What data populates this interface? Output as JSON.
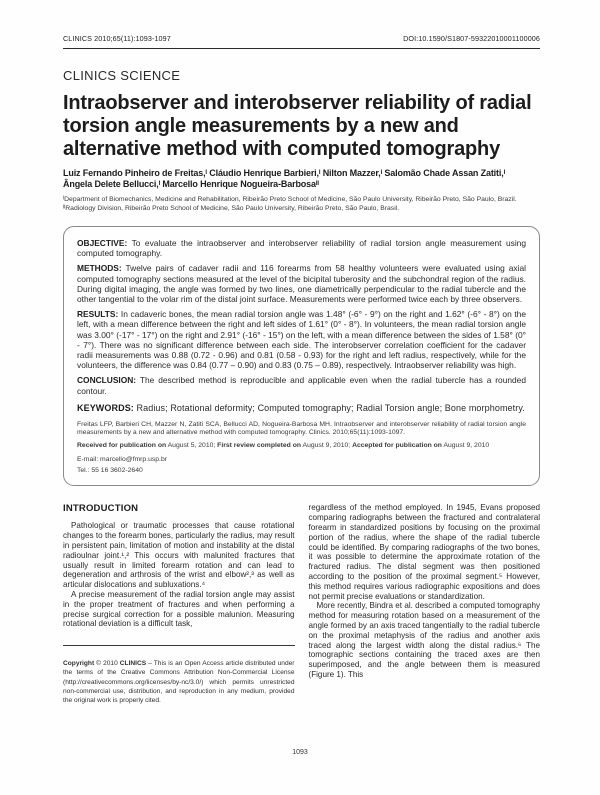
{
  "header": {
    "citation_left": "CLINICS 2010;65(11):1093-1097",
    "doi": "DOI:10.1590/S1807-59322010001100006",
    "section_label": "CLINICS SCIENCE"
  },
  "article": {
    "title": "Intraobserver and interobserver reliability of radial torsion angle measurements by a new and alternative method with computed tomography",
    "authors_line1": "Luiz Fernando Pinheiro de Freitas,ᴵ Cláudio Henrique Barbieri,ᴵ Nilton Mazzer,ᴵ Salomão Chade Assan Zatiti,ᴵ",
    "authors_line2": "Ângela Delete Bellucci,ᴵ Marcello Henrique Nogueira-Barbosaᴵᴵ",
    "affiliation1": "ᴵDepartment of Biomechanics, Medicine and Rehabilitation, Ribeirão Preto School of Medicine, São Paulo University, Ribeirão Preto, São Paulo, Brazil.",
    "affiliation2": "ᴵᴵRadiology Division, Ribeirão Preto School of Medicine, São Paulo University, Ribeirão Preto, São Paulo, Brasil."
  },
  "abstract": {
    "sections": [
      {
        "label": "OBJECTIVE:",
        "text": "To evaluate the intraobserver and interobserver reliability of radial torsion angle measurement using computed tomography."
      },
      {
        "label": "METHODS:",
        "text": "Twelve pairs of cadaver radii and 116 forearms from 58 healthy volunteers were evaluated using axial computed tomography sections measured at the level of the bicipital tuberosity and the subchondral region of the radius. During digital imaging, the angle was formed by two lines, one diametrically perpendicular to the radial tubercle and the other tangential to the volar rim of the distal joint surface. Measurements were performed twice each by three observers."
      },
      {
        "label": "RESULTS:",
        "text": "In cadaveric bones, the mean radial torsion angle was 1.48° (-6° - 9°) on the right and 1.62° (-6° - 8°) on the left, with a mean difference between the right and left sides of 1.61° (0° - 8°). In volunteers, the mean radial torsion angle was 3.00° (-17° - 17°) on the right and 2.91° (-16° - 15°) on the left, with a mean difference between the sides of 1.58° (0° - 7°). There was no significant difference between each side. The interobserver correlation coefficient for the cadaver radii measurements was 0.88 (0.72 - 0.96) and 0.81 (0.58 - 0.93) for the right and left radius, respectively, while for the volunteers, the difference was 0.84 (0.77 – 0.90) and 0.83 (0.75 – 0.89), respectively. Intraobserver reliability was high."
      },
      {
        "label": "CONCLUSION:",
        "text": "The described method is reproducible and applicable even when the radial tubercle has a rounded contour."
      }
    ],
    "keywords_label": "KEYWORDS:",
    "keywords": "Radius; Rotational deformity; Computed tomography; Radial Torsion angle; Bone morphometry.",
    "citation": "Freitas LFP, Barbieri CH, Mazzer N, Zatiti SCA, Bellucci AD, Nogueira-Barbosa MH. Intraobserver and interobserver reliability of radial torsion angle measurements by a new and alternative method with computed tomography. Clinics. 2010;65(11):1093-1097.",
    "received": [
      {
        "b": "Received for publication on",
        "t": " August 5, 2010; "
      },
      {
        "b": "First review completed on",
        "t": " August 9, 2010; "
      },
      {
        "b": "Accepted for publication on",
        "t": " August 9, 2010"
      }
    ],
    "email": "E-mail: marcello@fmrp.usp.br",
    "tel": "Tel.: 55 16 3602-2640"
  },
  "body": {
    "intro_heading": "INTRODUCTION",
    "left_paragraphs": [
      "Pathological or traumatic processes that cause rotational changes to the forearm bones, particularly the radius, may result in persistent pain, limitation of motion and instability at the distal radioulnar joint.¹,² This occurs with malunited fractures that usually result in limited forearm rotation and can lead to degeneration and arthrosis of the wrist and elbow²,³ as well as articular dislocations and subluxations.⁴",
      "A precise measurement of the radial torsion angle may assist in the proper treatment of fractures and when performing a precise surgical correction for a possible malunion. Measuring rotational deviation is a difficult task,"
    ],
    "right_paragraphs": [
      "regardless of the method employed. In 1945, Evans proposed comparing radiographs between the fractured and contralateral forearm in standardized positions by focusing on the proximal portion of the radius, where the shape of the radial tubercle could be identified. By comparing radiographs of the two bones, it was possible to determine the approximate rotation of the fractured radius. The distal segment was then positioned according to the position of the proximal segment.⁵ However, this method requires various radiographic expositions and does not permit precise evaluations or standardization.",
      "More recently, Bindra et al. described a computed tomography method for measuring rotation based on a measurement of the angle formed by an axis traced tangentially to the radial tubercle on the proximal metaphysis of the radius and another axis traced along the largest width along the distal radius.⁶ The tomographic sections containing the traced axes are then superimposed, and the angle between them is measured (Figure 1). This"
    ],
    "copyright": [
      {
        "b": "Copyright",
        "t": " © 2010 "
      },
      {
        "b": "CLINICS",
        "t": " – This is an Open Access article distributed under the terms of the Creative Commons Attribution Non-Commercial License (http://creativecommons.org/licenses/by-nc/3.0/) which permits unrestricted non-commercial use, distribution, and reproduction in any medium, provided the original work is properly cited."
      }
    ]
  },
  "footer": {
    "page_number": "1093"
  }
}
